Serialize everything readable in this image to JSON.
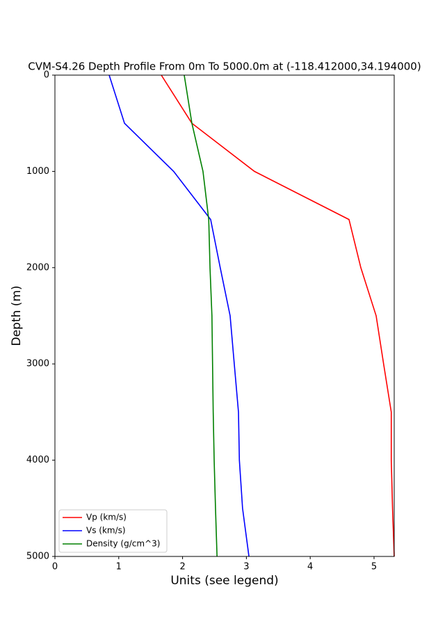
{
  "chart_data": {
    "type": "line",
    "title": "CVM-S4.26 Depth Profile From 0m To 5000.0m at (-118.412000,34.194000)",
    "x_label": "Units (see legend)",
    "y_label": "Depth (m)",
    "y": [
      0,
      500,
      1000,
      1500,
      2000,
      2500,
      3000,
      3500,
      4000,
      4500,
      5000
    ],
    "series": [
      {
        "name": "Vp (km/s)",
        "color": "#ff0000",
        "values": [
          1.667,
          2.146,
          3.126,
          4.608,
          4.793,
          5.033,
          5.15,
          5.27,
          5.27,
          5.29,
          5.316
        ]
      },
      {
        "name": "Vs (km/s)",
        "color": "#0000ff",
        "values": [
          0.85,
          1.09,
          1.86,
          2.44,
          2.59,
          2.745,
          2.81,
          2.876,
          2.89,
          2.94,
          3.04
        ]
      },
      {
        "name": "Density (g/cm^3)",
        "color": "#008000",
        "values": [
          2.026,
          2.146,
          2.32,
          2.41,
          2.43,
          2.46,
          2.47,
          2.48,
          2.495,
          2.516,
          2.54
        ]
      }
    ],
    "xlim": [
      0,
      5.316
    ],
    "xticks": [
      0,
      1,
      2,
      3,
      4,
      5
    ],
    "ylim": [
      5000,
      0
    ],
    "yticks": [
      0,
      1000,
      2000,
      3000,
      4000,
      5000
    ],
    "legend": "lower left"
  }
}
